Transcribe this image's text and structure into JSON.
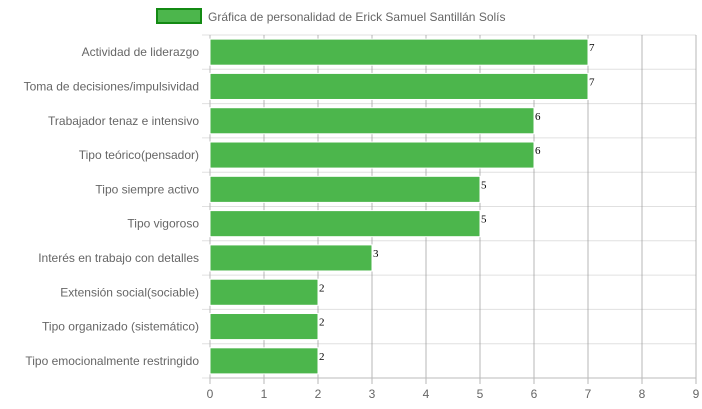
{
  "chart_data": {
    "type": "bar",
    "orientation": "horizontal",
    "categories": [
      "Actividad de liderazgo",
      "Toma de decisiones/impulsividad",
      "Trabajador tenaz e intensivo",
      "Tipo teórico(pensador)",
      "Tipo siempre activo",
      "Tipo vigoroso",
      "Interés en trabajo con detalles",
      "Extensión social(sociable)",
      "Tipo organizado (sistemático)",
      "Tipo emocionalmente restringido"
    ],
    "series": [
      {
        "name": "Gráfica de personalidad de Erick Samuel Santillán Solís",
        "values": [
          7,
          7,
          6,
          6,
          5,
          5,
          3,
          2,
          2,
          2
        ]
      }
    ],
    "xlim": [
      0,
      9
    ],
    "xticks": [
      "0",
      "1",
      "2",
      "3",
      "4",
      "5",
      "6",
      "7",
      "8",
      "9"
    ],
    "grid": true,
    "legend_position": "top",
    "colors": {
      "bar_fill": "#4cb64c",
      "bar_border": "#ffffff",
      "legend_border": "#138a13",
      "grid": "#e0e0e0",
      "grid_major": "#999999"
    }
  }
}
